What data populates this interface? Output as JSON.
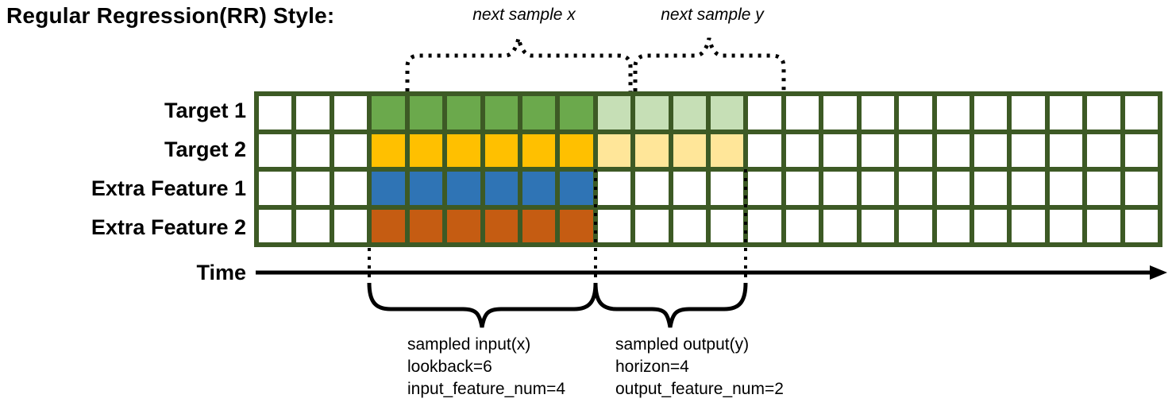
{
  "title": "Regular Regression(RR) Style:",
  "annotations": {
    "next_sample_x": "next sample x",
    "next_sample_y": "next sample y"
  },
  "rows": [
    {
      "label": "Target 1",
      "solid": "#6BA94C",
      "light": "#C6DFB6",
      "has_light": true
    },
    {
      "label": "Target 2",
      "solid": "#FFC000",
      "light": "#FFE699",
      "has_light": true
    },
    {
      "label": "Extra Feature 1",
      "solid": "#2F74B5",
      "light": null,
      "has_light": false
    },
    {
      "label": "Extra Feature 2",
      "solid": "#C55C12",
      "light": null,
      "has_light": false
    }
  ],
  "grid": {
    "columns": 24,
    "input_start_col": 3,
    "lookback": 6,
    "horizon": 4,
    "border_color": "#3D5A25",
    "cell_color": "#FFFFFF"
  },
  "time_axis": {
    "label": "Time"
  },
  "input_block": {
    "line1": "sampled input(x)",
    "line2": "lookback=6",
    "line3": "input_feature_num=4"
  },
  "output_block": {
    "line1": "sampled output(y)",
    "line2": "horizon=4",
    "line3": "output_feature_num=2"
  }
}
